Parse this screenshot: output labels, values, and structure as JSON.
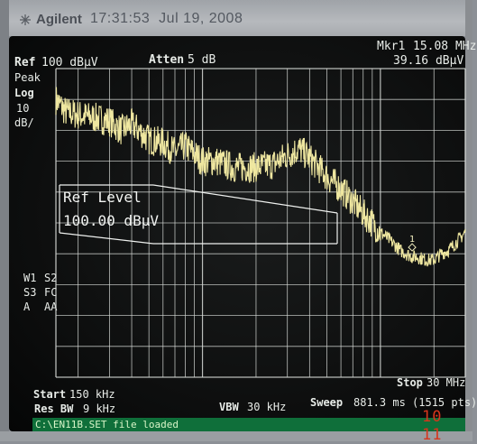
{
  "instrument": {
    "brand": "Agilent",
    "time": "17:31:53",
    "date": "Jul 19, 2008"
  },
  "header": {
    "ref_label": "Ref",
    "ref_value": "100 dBµV",
    "atten_label": "Atten",
    "atten_value": "5 dB",
    "marker_label": "Mkr1",
    "marker_freq": "15.08 MHz",
    "marker_level": "39.16 dBµV"
  },
  "left_panel": {
    "detector": "Peak",
    "scale_type": "Log",
    "scale_value": "10",
    "scale_unit": "dB/",
    "trace_w1": "W1",
    "trace_s2": "S2",
    "trace_s3": "S3",
    "trace_fc": "FC",
    "trace_a": "A",
    "trace_aa": "AA"
  },
  "overlay": {
    "ref_level_title": "Ref Level",
    "ref_level_value": "100.00 dBµV"
  },
  "marker_glyph": "1",
  "footer": {
    "start_label": "Start",
    "start_value": "150 kHz",
    "stop_label": "Stop",
    "stop_value": "30 MHz",
    "res_bw_label": "Res BW",
    "res_bw_value": "9 kHz",
    "vbw_label": "VBW",
    "vbw_value": "30 kHz",
    "sweep_label": "Sweep",
    "sweep_value": "881.3 ms (1515 pts)"
  },
  "status_message": "C:\\EN11B.SET file loaded",
  "photo_stamp": "10 11",
  "colors": {
    "trace": "#efe7a0",
    "grid": "#d8dcd8",
    "text": "#e8ece8",
    "status_bg": "#0f6f3a",
    "stamp": "#d8351c"
  },
  "chart_data": {
    "type": "line",
    "x_scale": "log",
    "xlim_mhz": [
      0.15,
      30
    ],
    "ylim_dbuv": [
      0,
      100
    ],
    "y_divisions": 10,
    "series": [
      {
        "x_mhz": [
          0.15,
          0.17,
          0.2,
          0.25,
          0.3,
          0.35,
          0.4,
          0.5,
          0.6,
          0.7,
          0.8,
          1.0,
          1.2,
          1.5,
          2.0,
          2.5,
          3.0,
          3.5,
          4.0,
          5.0,
          6.0,
          7.0,
          8.0,
          9.0,
          10.0,
          11.0,
          12.0,
          13.0,
          14.0,
          15.08,
          16.0,
          18.0,
          20.0,
          22.0,
          24.0,
          26.0,
          28.0,
          30.0
        ],
        "y_dbuv": [
          90,
          86,
          85,
          84,
          83,
          80,
          82,
          77,
          76,
          73,
          75,
          70,
          70,
          68,
          68,
          69,
          72,
          74,
          71,
          65,
          61,
          57,
          53,
          50,
          47,
          45,
          43,
          41,
          40,
          39,
          39,
          38,
          38,
          40,
          41,
          43,
          45,
          47
        ]
      }
    ]
  }
}
